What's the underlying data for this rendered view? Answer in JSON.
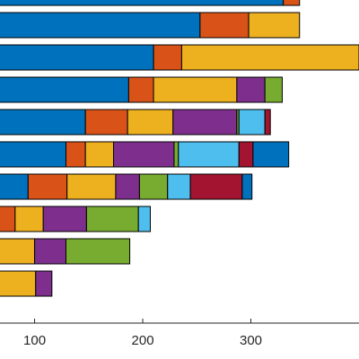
{
  "chart_data": {
    "type": "bar",
    "orientation": "horizontal",
    "stacked": true,
    "xlim": [
      68,
      400
    ],
    "xticks": [
      100,
      200,
      300
    ],
    "xtick_labels": [
      "100",
      "200",
      "300"
    ],
    "grid": false,
    "legend": "none",
    "title": "",
    "xlabel": "",
    "ylabel": "",
    "colors": [
      "#0072BD",
      "#D95319",
      "#EDB120",
      "#7E2F8E",
      "#77AC30",
      "#4DBEEE",
      "#A2142F"
    ],
    "bars": [
      [
        330,
        15
      ],
      [
        253,
        45,
        47
      ],
      [
        210,
        26,
        164
      ],
      [
        187,
        23,
        77,
        26,
        16
      ],
      [
        147,
        39,
        42,
        59,
        2,
        24,
        5
      ],
      [
        129,
        18,
        26,
        56,
        4,
        56,
        13,
        33
      ],
      [
        94,
        36,
        45,
        22,
        26,
        21,
        48,
        9
      ],
      [
        47,
        35,
        26,
        40,
        48,
        11
      ],
      [
        38,
        10,
        52,
        29,
        59
      ],
      [
        9,
        26,
        66,
        15
      ]
    ]
  }
}
